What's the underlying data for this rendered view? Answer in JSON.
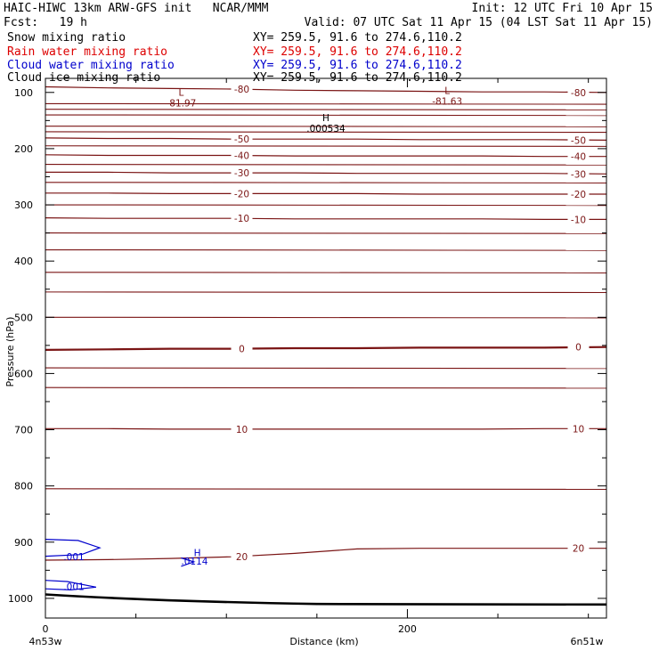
{
  "header": {
    "title_left": "HAIC-HIWC 13km ARW-GFS init   NCAR/MMM",
    "init": "Init: 12 UTC Fri 10 Apr 15",
    "fcst": "Fcst:   19 h",
    "valid": "Valid: 07 UTC Sat 11 Apr 15 (04 LST Sat 11 Apr 15)"
  },
  "legend": [
    {
      "name": "Snow mixing ratio",
      "xy": "XY= 259.5, 91.6 to 274.6,110.2",
      "color": "#000000"
    },
    {
      "name": "Rain water mixing ratio",
      "xy": "XY= 259.5, 91.6 to 274.6,110.2",
      "color": "#dd0000"
    },
    {
      "name": "Cloud water mixing ratio",
      "xy": "XY= 259.5, 91.6 to 274.6,110.2",
      "color": "#0000cc"
    },
    {
      "name": "Cloud ice mixing ratio",
      "xy": "XY= 259.5, 91.6 to 274.6,110.2",
      "color": "#000000"
    }
  ],
  "chart_data": {
    "type": "contour",
    "xlabel": "Distance (km)",
    "ylabel": "Pressure (hPa)",
    "xlim": [
      0,
      310
    ],
    "ylim": [
      1035,
      75
    ],
    "x_ticks": [
      0,
      200
    ],
    "y_ticks": [
      100,
      200,
      300,
      400,
      500,
      600,
      700,
      800,
      900,
      1000
    ],
    "x_endpoint_labels": {
      "left": "4n53w",
      "right": "6n51w"
    },
    "temperature_contours": {
      "color": "#7a1414",
      "levels": [
        {
          "value": -80,
          "label": "-80",
          "p": [
            90,
            92,
            93,
            94,
            96,
            97,
            98,
            99,
            99,
            100
          ]
        },
        {
          "value": -50,
          "label": "-50",
          "p": [
            181,
            182,
            182,
            183,
            183,
            183,
            184,
            184,
            184,
            185
          ]
        },
        {
          "value": -40,
          "label": "-40",
          "p": [
            211,
            212,
            212,
            212,
            213,
            213,
            213,
            213,
            214,
            214
          ]
        },
        {
          "value": -30,
          "label": "-30",
          "p": [
            242,
            242,
            243,
            243,
            243,
            244,
            244,
            244,
            244,
            245
          ]
        },
        {
          "value": -20,
          "label": "-20",
          "p": [
            279,
            279,
            280,
            280,
            280,
            280,
            281,
            281,
            281,
            281
          ]
        },
        {
          "value": -10,
          "label": "-10",
          "p": [
            323,
            324,
            324,
            324,
            325,
            325,
            325,
            325,
            326,
            326
          ]
        },
        {
          "value": 0,
          "label": "0",
          "p": [
            558,
            557,
            556,
            556,
            555,
            555,
            554,
            554,
            554,
            553
          ]
        },
        {
          "value": 10,
          "label": "10",
          "p": [
            698,
            698,
            699,
            699,
            699,
            699,
            699,
            699,
            698,
            698
          ]
        },
        {
          "value": 20,
          "label": "20",
          "p": [
            932,
            931,
            929,
            926,
            920,
            912,
            911,
            911,
            911,
            911
          ]
        }
      ],
      "extrema": [
        {
          "type": "L",
          "value": "-81.97",
          "x": 75,
          "p": 106
        },
        {
          "type": "L",
          "value": "-81.63",
          "x": 222,
          "p": 103
        },
        {
          "type": "H",
          "value": ".000534",
          "x": 155,
          "p": 151
        }
      ]
    },
    "cloud_water": {
      "color": "#0000cc",
      "labels": [
        {
          "text": ".001",
          "x": 10,
          "p": 932
        },
        {
          "text": ".001",
          "x": 10,
          "p": 985
        },
        {
          "text": "H",
          "x": 82,
          "p": 925
        },
        {
          "text": ".0114",
          "x": 75,
          "p": 940
        }
      ]
    },
    "surface": {
      "p_start": 993,
      "p_end": 1010
    }
  }
}
